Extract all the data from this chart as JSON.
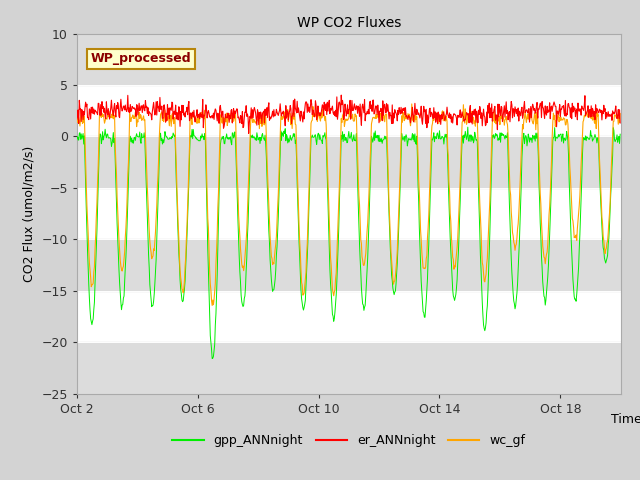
{
  "title": "WP CO2 Fluxes",
  "xlabel": "Time",
  "ylabel_plain": "CO2 Flux (umol/m2/s)",
  "ylim": [
    -25,
    10
  ],
  "yticks": [
    -25,
    -20,
    -15,
    -10,
    -5,
    0,
    5,
    10
  ],
  "xtick_positions": [
    0,
    4,
    8,
    12,
    16
  ],
  "xtick_labels": [
    "Oct 2",
    "Oct 6",
    "Oct 10",
    "Oct 14",
    "Oct 18"
  ],
  "xlim": [
    0,
    18
  ],
  "annotation_text": "WP_processed",
  "annotation_color": "#8B0000",
  "annotation_bg": "#FFFFCC",
  "annotation_edge": "#B8860B",
  "gpp_color": "#00EE00",
  "er_color": "#FF0000",
  "wc_color": "#FFA500",
  "legend_labels": [
    "gpp_ANNnight",
    "er_ANNnight",
    "wc_gf"
  ],
  "fig_bg": "#D3D3D3",
  "axes_bg": "#FFFFFF",
  "band_color": "#DCDCDC",
  "n_days": 18,
  "pts_per_day": 48
}
